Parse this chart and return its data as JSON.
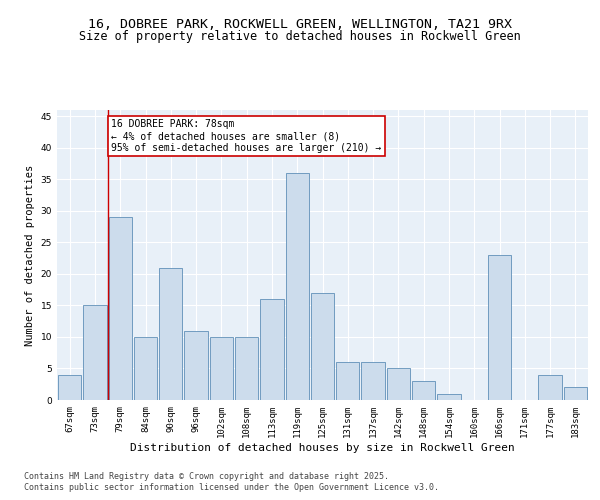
{
  "title1": "16, DOBREE PARK, ROCKWELL GREEN, WELLINGTON, TA21 9RX",
  "title2": "Size of property relative to detached houses in Rockwell Green",
  "xlabel": "Distribution of detached houses by size in Rockwell Green",
  "ylabel": "Number of detached properties",
  "categories": [
    "67sqm",
    "73sqm",
    "79sqm",
    "84sqm",
    "90sqm",
    "96sqm",
    "102sqm",
    "108sqm",
    "113sqm",
    "119sqm",
    "125sqm",
    "131sqm",
    "137sqm",
    "142sqm",
    "148sqm",
    "154sqm",
    "160sqm",
    "166sqm",
    "171sqm",
    "177sqm",
    "183sqm"
  ],
  "values": [
    4,
    15,
    29,
    10,
    21,
    11,
    10,
    10,
    16,
    36,
    17,
    6,
    6,
    5,
    3,
    1,
    0,
    23,
    0,
    4,
    2
  ],
  "bar_color": "#ccdcec",
  "bar_edge_color": "#6090b8",
  "background_color": "#e8f0f8",
  "grid_color": "#ffffff",
  "annotation_text_line1": "16 DOBREE PARK: 78sqm",
  "annotation_text_line2": "← 4% of detached houses are smaller (8)",
  "annotation_text_line3": "95% of semi-detached houses are larger (210) →",
  "annotation_box_facecolor": "#ffffff",
  "annotation_box_edgecolor": "#cc0000",
  "vline_color": "#cc0000",
  "vline_x": 1.5,
  "ylim": [
    0,
    46
  ],
  "yticks": [
    0,
    5,
    10,
    15,
    20,
    25,
    30,
    35,
    40,
    45
  ],
  "footer1": "Contains HM Land Registry data © Crown copyright and database right 2025.",
  "footer2": "Contains public sector information licensed under the Open Government Licence v3.0.",
  "title1_fontsize": 9.5,
  "title2_fontsize": 8.5,
  "xlabel_fontsize": 8,
  "ylabel_fontsize": 7.5,
  "tick_fontsize": 6.5,
  "annotation_fontsize": 7,
  "footer_fontsize": 6
}
